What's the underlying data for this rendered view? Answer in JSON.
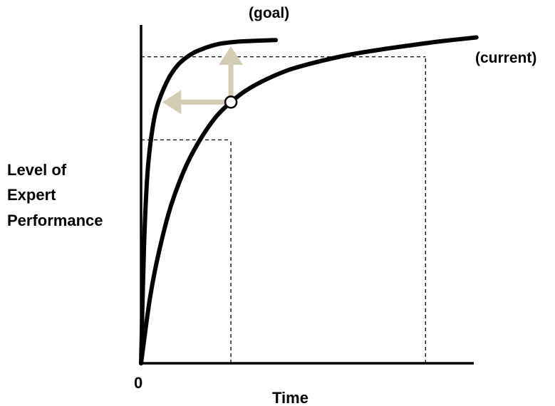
{
  "chart_data": {
    "type": "line",
    "title": "",
    "xlabel": "Time",
    "ylabel_lines": [
      "Level of",
      "Expert",
      "Performance"
    ],
    "origin_tick": "0",
    "xlim": [
      0,
      10
    ],
    "ylim": [
      0,
      10
    ],
    "grid": false,
    "series": [
      {
        "name": "(goal)",
        "x": [
          0,
          0.1,
          0.2,
          0.3,
          0.45,
          0.6,
          0.8,
          1.0,
          1.25,
          1.5,
          1.75,
          2.0,
          2.3,
          2.6,
          3.0,
          3.4,
          3.9,
          4.5
        ],
        "y": [
          0,
          3.6,
          5.6,
          6.6,
          7.5,
          8.0,
          8.45,
          8.8,
          9.1,
          9.3,
          9.45,
          9.55,
          9.65,
          9.72,
          9.77,
          9.8,
          9.82,
          9.84
        ]
      },
      {
        "name": "(current)",
        "x": [
          0,
          0.3,
          0.6,
          1.0,
          1.5,
          2.0,
          2.5,
          3.0,
          3.5,
          4.2,
          5.0,
          6.0,
          7.0,
          8.0,
          9.0,
          10.0,
          11.2
        ],
        "y": [
          0,
          2.0,
          3.4,
          4.8,
          6.0,
          6.85,
          7.5,
          7.95,
          8.3,
          8.65,
          8.95,
          9.2,
          9.4,
          9.55,
          9.68,
          9.8,
          9.92
        ]
      }
    ],
    "reference_lines": [
      {
        "y": 9.33,
        "x_from": 0,
        "x_to": 9.5,
        "direction": "horizontal"
      },
      {
        "x": 9.5,
        "y_from": 0,
        "y_to": 9.33,
        "direction": "vertical"
      },
      {
        "y": 6.8,
        "x_from": 0,
        "x_to": 3.0,
        "direction": "horizontal"
      },
      {
        "x": 3.0,
        "y_from": 0,
        "y_to": 6.8,
        "direction": "vertical"
      }
    ],
    "marked_point": {
      "x": 3.0,
      "y": 7.95
    },
    "arrows": [
      {
        "from": [
          3.0,
          7.95
        ],
        "to": [
          0.72,
          7.95
        ],
        "color": "#D4CCB2"
      },
      {
        "from": [
          3.0,
          7.95
        ],
        "to": [
          3.0,
          9.65
        ],
        "color": "#D4CCB2"
      }
    ],
    "colors": {
      "curve": "#000000",
      "arrow": "#D4CCB2",
      "axis": "#000000",
      "reference": "#000000"
    }
  }
}
